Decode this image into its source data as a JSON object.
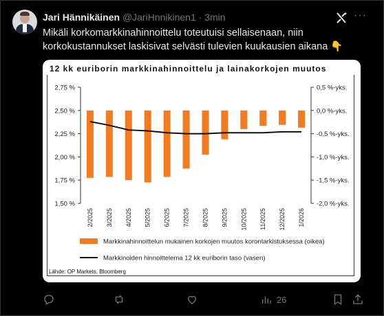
{
  "tweet": {
    "author_name": "Jari Hännikäinen",
    "handle": "@JariHnnikinen1",
    "separator": "·",
    "time": "3min",
    "text": "Mikäli korkomarkkinahinnoittelu toteutuisi sellaisenaan, niin korkokustannukset laskisivat selvästi tulevien kuukausien aikana 👇"
  },
  "card": {
    "source": "Lähde: OP Markets, Bloomberg"
  },
  "chart_data": {
    "type": "bar",
    "title": "12 kk euriborin markkinahinnoittelu ja lainakorkojen muutos",
    "categories": [
      "2/2025",
      "3/2025",
      "4/2025",
      "5/2025",
      "6/2025",
      "7/2025",
      "8/2025",
      "9/2025",
      "10/2025",
      "11/2025",
      "12/2025",
      "1/2026"
    ],
    "left_axis": {
      "ticks": [
        "2,75 %",
        "2,50 %",
        "2,25 %",
        "2,00 %",
        "1,75 %",
        "1,50 %"
      ],
      "tick_values": [
        2.75,
        2.5,
        2.25,
        2.0,
        1.75,
        1.5
      ],
      "ylim": [
        1.5,
        2.75
      ]
    },
    "right_axis": {
      "ticks": [
        "0,5 %-yks.",
        "0,0 %-yks.",
        "-0,5 %-yks.",
        "-1,0 %-yks.",
        "-1,5 %-yks.",
        "-2,0 %-yks."
      ],
      "tick_values": [
        0.5,
        0.0,
        -0.5,
        -1.0,
        -1.5,
        -2.0
      ],
      "ylim": [
        -2.0,
        0.5
      ]
    },
    "series": [
      {
        "name": "Markkinahinnoittelun mukainen korkojen muutos korontarkistuksessa (oikea)",
        "type": "bar",
        "axis": "right",
        "color": "#f47b20",
        "values": [
          -1.45,
          -1.43,
          -1.5,
          -1.55,
          -1.43,
          -1.25,
          -0.95,
          -0.62,
          -0.4,
          -0.33,
          -0.31,
          -0.37
        ]
      },
      {
        "name": "Markkinoiden hinnoittelema 12 kk euriborin taso (vasen)",
        "type": "line",
        "axis": "left",
        "color": "#111111",
        "values": [
          2.38,
          2.34,
          2.29,
          2.28,
          2.26,
          2.25,
          2.25,
          2.26,
          2.26,
          2.26,
          2.27,
          2.27
        ]
      }
    ],
    "legend_position": "bottom",
    "grid": false
  },
  "actions": {
    "reply_count": "",
    "retweet_count": "",
    "like_count": "",
    "views_count": "26"
  },
  "icons": {
    "reply": "reply-icon",
    "retweet": "retweet-icon",
    "like": "heart-icon",
    "views": "views-icon",
    "bookmark": "bookmark-icon",
    "share": "share-icon",
    "grok": "grok-icon",
    "more": "more-icon"
  }
}
